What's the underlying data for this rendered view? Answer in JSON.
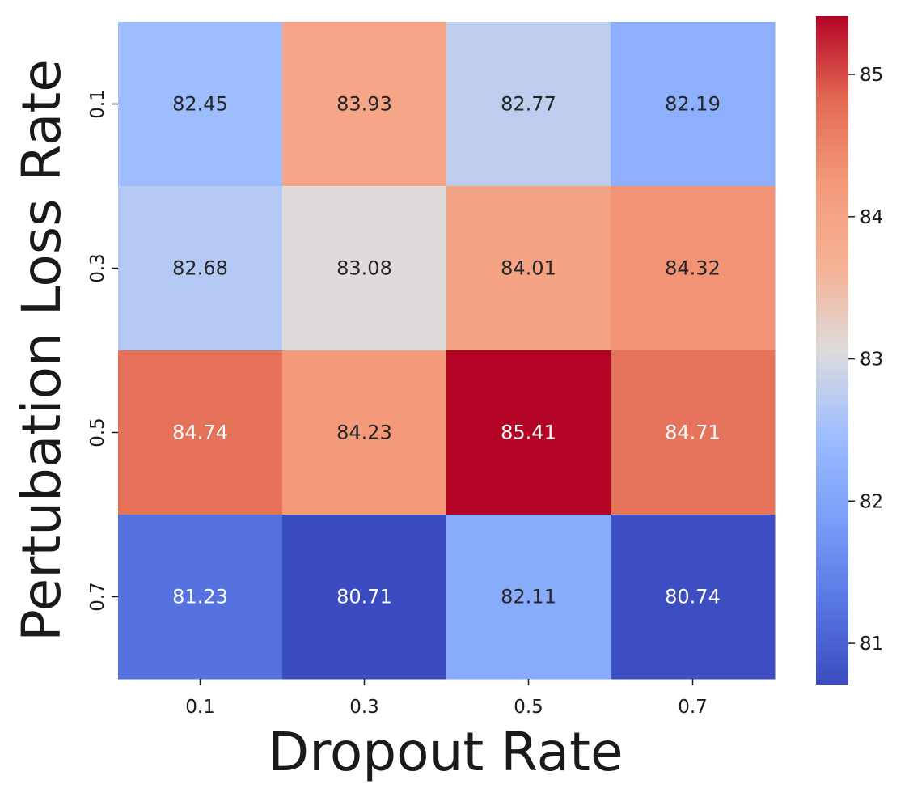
{
  "chart_data": {
    "type": "heatmap",
    "xlabel": "Dropout Rate",
    "ylabel": "Pertubation Loss Rate",
    "x_categories": [
      "0.1",
      "0.3",
      "0.5",
      "0.7"
    ],
    "y_categories": [
      "0.1",
      "0.3",
      "0.5",
      "0.7"
    ],
    "values": [
      [
        82.45,
        83.93,
        82.77,
        82.19
      ],
      [
        82.68,
        83.08,
        84.01,
        84.32
      ],
      [
        84.74,
        84.23,
        85.41,
        84.71
      ],
      [
        81.23,
        80.71,
        82.11,
        80.74
      ]
    ],
    "cell_labels": [
      [
        "82.45",
        "83.93",
        "82.77",
        "82.19"
      ],
      [
        "82.68",
        "83.08",
        "84.01",
        "84.32"
      ],
      [
        "84.74",
        "84.23",
        "85.41",
        "84.71"
      ],
      [
        "81.23",
        "80.71",
        "82.11",
        "80.74"
      ]
    ],
    "colormap": "coolwarm",
    "vmin": 80.71,
    "vmax": 85.41,
    "colorbar_ticks": [
      81,
      82,
      83,
      84,
      85
    ],
    "colorbar_tick_labels": [
      "81",
      "82",
      "83",
      "84",
      "85"
    ]
  }
}
